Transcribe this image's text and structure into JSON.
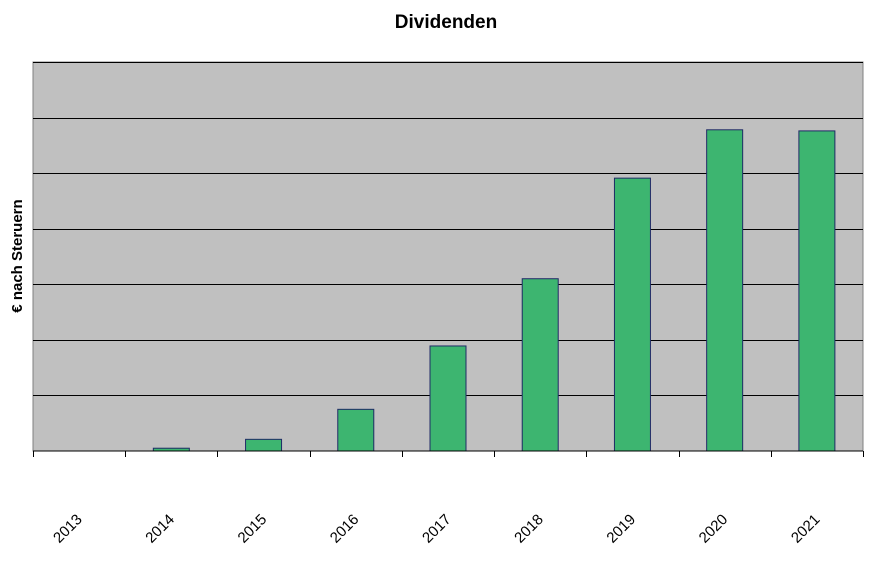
{
  "chart_data": {
    "type": "bar",
    "title": "Dividenden",
    "xlabel": "",
    "ylabel": "€ nach Steruern",
    "categories": [
      "2013",
      "2014",
      "2015",
      "2016",
      "2017",
      "2018",
      "2019",
      "2020",
      "2021"
    ],
    "values": [
      0,
      0.5,
      2.1,
      7.5,
      18.9,
      31.0,
      49.1,
      57.8,
      57.6
    ],
    "ylim": [
      0,
      70
    ],
    "ytick_step": 10,
    "grid": true,
    "legend": "none",
    "colors": {
      "bar_fill": "#3db570",
      "bar_stroke": "#1f2a66",
      "plot_background": "#c0c0c0",
      "gridline": "#000000"
    }
  }
}
